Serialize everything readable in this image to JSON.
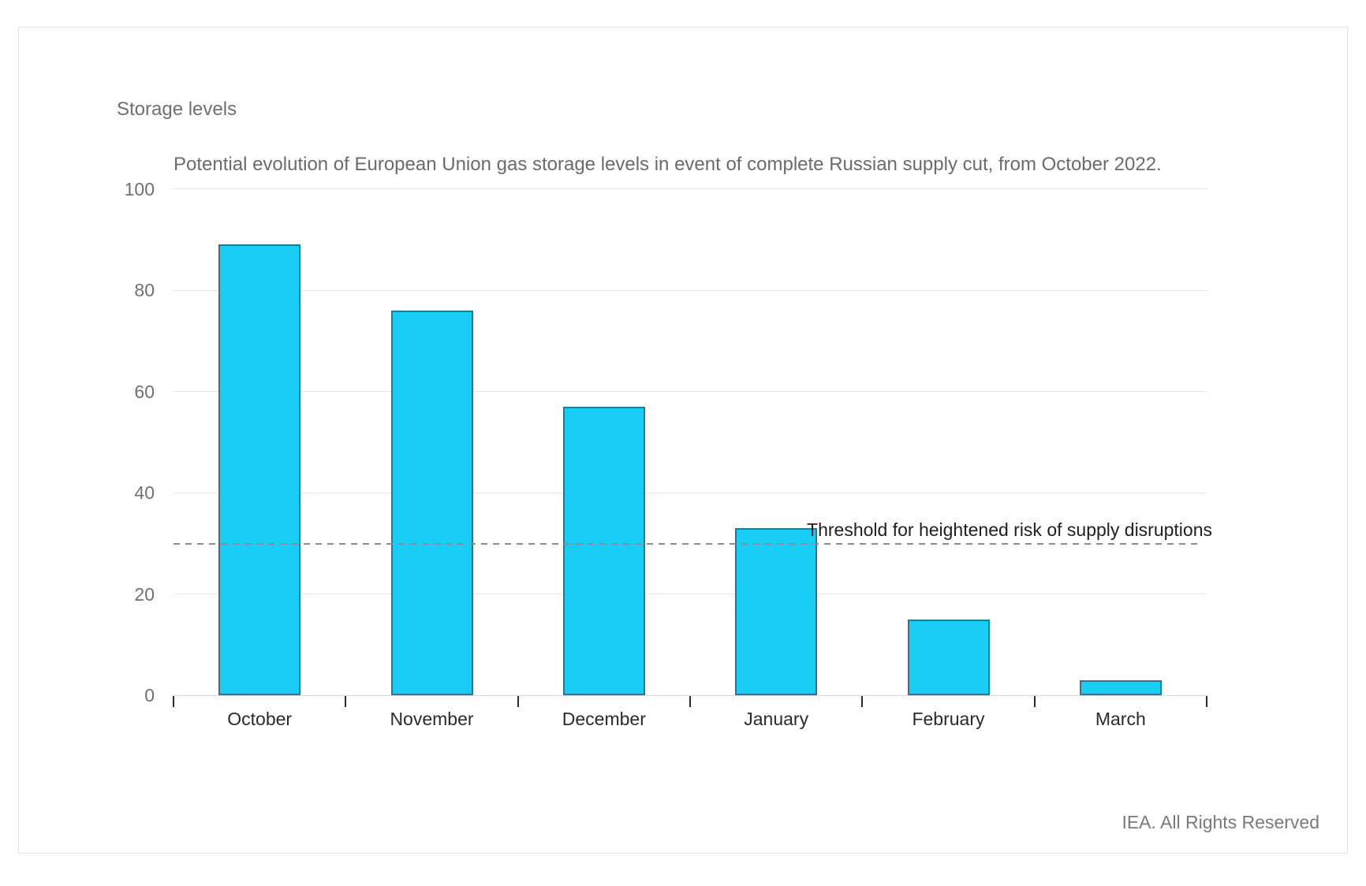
{
  "page": {
    "credit": "IEA. All Rights Reserved"
  },
  "chart_data": {
    "type": "bar",
    "title": "Potential evolution of European Union gas storage levels in event of complete Russian supply cut, from October 2022.",
    "ylabel": "Storage levels",
    "xlabel": "",
    "categories": [
      "October",
      "November",
      "December",
      "January",
      "February",
      "March"
    ],
    "values": [
      89,
      76,
      57,
      33,
      15,
      3
    ],
    "ylim": [
      0,
      100
    ],
    "yticks": [
      0,
      20,
      40,
      60,
      80,
      100
    ],
    "grid": "horizontal",
    "legend": "none",
    "threshold": {
      "value": 30,
      "label": "Threshold for heightened risk of supply disruptions"
    },
    "colors": {
      "bar_fill": "#1ACDF4",
      "bar_stroke": "#2A7795",
      "gridline": "#e6e6e6",
      "axis_line": "#d8d8d8",
      "tick_mark": "#2b2b2b",
      "axis_text": "#707070",
      "category_text": "#2a2a2a",
      "title_text": "#6b6b6b",
      "threshold_line": "#8c8c8c",
      "threshold_text": "#1f1f1f",
      "credit_text": "#7a7a7a",
      "card_border": "#e2e2e2"
    }
  }
}
